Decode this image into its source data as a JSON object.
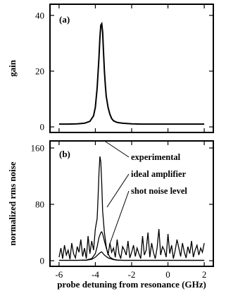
{
  "chart_data": [
    {
      "type": "line",
      "panel_label": "(a)",
      "xlabel": "",
      "ylabel": "gain",
      "xlim": [
        -6.5,
        2.5
      ],
      "ylim": [
        -2,
        44
      ],
      "yticks": [
        0,
        20,
        40
      ],
      "ytick_labels": [
        "0",
        "20",
        "40"
      ],
      "grid": false,
      "series": [
        {
          "x": [
            -6.0,
            -5.5,
            -5.0,
            -4.6,
            -4.3,
            -4.1,
            -4.0,
            -3.9,
            -3.8,
            -3.75,
            -3.7,
            -3.65,
            -3.6,
            -3.55,
            -3.5,
            -3.45,
            -3.4,
            -3.3,
            -3.2,
            -3.1,
            -3.0,
            -2.8,
            -2.5,
            -2.0,
            -1.5,
            -1.0,
            -0.5,
            0.0,
            0.5,
            1.0,
            1.5,
            2.0
          ],
          "y": [
            1.0,
            1.0,
            1.1,
            1.3,
            2.0,
            4.0,
            7.0,
            14.0,
            25.0,
            32.0,
            36.5,
            37.0,
            34.0,
            27.0,
            20.0,
            15.0,
            11.0,
            7.0,
            4.5,
            3.0,
            2.2,
            1.6,
            1.3,
            1.1,
            1.0,
            1.0,
            1.0,
            1.0,
            1.0,
            1.0,
            1.0,
            1.0
          ]
        }
      ]
    },
    {
      "type": "line",
      "panel_label": "(b)",
      "xlabel": "probe detuning from resonance (GHz)",
      "ylabel": "normalized rms noise",
      "xlim": [
        -6.5,
        2.5
      ],
      "ylim": [
        -8,
        170
      ],
      "xticks": [
        -6,
        -4,
        -2,
        0,
        2
      ],
      "xtick_labels": [
        "-6",
        "-4",
        "-2",
        "0",
        "2"
      ],
      "yticks": [
        0,
        80,
        160
      ],
      "ytick_labels": [
        "0",
        "80",
        "160"
      ],
      "grid": false,
      "annotations": [
        "experimental",
        "ideal amplifier",
        "shot noise level"
      ],
      "series": [
        {
          "x": [
            -6.0,
            -5.9,
            -5.8,
            -5.7,
            -5.6,
            -5.5,
            -5.4,
            -5.3,
            -5.2,
            -5.1,
            -5.0,
            -4.9,
            -4.8,
            -4.7,
            -4.6,
            -4.5,
            -4.4,
            -4.3,
            -4.2,
            -4.1,
            -4.0,
            -3.9,
            -3.85,
            -3.8,
            -3.75,
            -3.7,
            -3.65,
            -3.6,
            -3.5,
            -3.4,
            -3.3,
            -3.2,
            -3.1,
            -3.0,
            -2.9,
            -2.8,
            -2.7,
            -2.6,
            -2.5,
            -2.4,
            -2.3,
            -2.2,
            -2.1,
            -2.0,
            -1.9,
            -1.8,
            -1.7,
            -1.6,
            -1.5,
            -1.4,
            -1.3,
            -1.2,
            -1.1,
            -1.0,
            -0.9,
            -0.8,
            -0.7,
            -0.6,
            -0.5,
            -0.4,
            -0.3,
            -0.2,
            -0.1,
            0.0,
            0.1,
            0.2,
            0.3,
            0.4,
            0.5,
            0.6,
            0.7,
            0.8,
            0.9,
            1.0,
            1.1,
            1.2,
            1.3,
            1.4,
            1.5,
            1.6,
            1.7,
            1.8,
            1.9,
            2.0
          ],
          "y": [
            5,
            18,
            3,
            22,
            8,
            15,
            2,
            25,
            10,
            4,
            20,
            12,
            30,
            6,
            18,
            3,
            35,
            10,
            28,
            15,
            45,
            60,
            90,
            125,
            148,
            140,
            110,
            70,
            40,
            20,
            8,
            25,
            12,
            18,
            5,
            30,
            10,
            3,
            20,
            15,
            8,
            28,
            4,
            12,
            22,
            6,
            18,
            10,
            3,
            35,
            8,
            15,
            40,
            5,
            25,
            12,
            3,
            18,
            45,
            8,
            20,
            15,
            5,
            38,
            10,
            22,
            3,
            15,
            30,
            18,
            6,
            25,
            12,
            4,
            20,
            10,
            28,
            5,
            15,
            22,
            8,
            18,
            12,
            25
          ]
        },
        {
          "x": [
            -6.0,
            -5.0,
            -4.5,
            -4.2,
            -4.0,
            -3.9,
            -3.8,
            -3.7,
            -3.65,
            -3.6,
            -3.5,
            -3.4,
            -3.3,
            -3.2,
            -3.0,
            -2.8,
            -2.5,
            -2.0,
            -1.0,
            0.0,
            1.0,
            2.0
          ],
          "y": [
            0.5,
            0.5,
            1.0,
            3.0,
            10.0,
            20.0,
            33.0,
            40.0,
            41.0,
            38.0,
            28.0,
            18.0,
            10.0,
            5.0,
            2.0,
            1.0,
            0.5,
            0.5,
            0.5,
            0.5,
            0.5,
            0.5
          ]
        },
        {
          "x": [
            -6.0,
            -5.0,
            -4.5,
            -4.2,
            -4.0,
            -3.8,
            -3.7,
            -3.65,
            -3.6,
            -3.5,
            -3.3,
            -3.0,
            -2.8,
            -2.5,
            -2.0,
            -1.0,
            0.0,
            1.0,
            2.0
          ],
          "y": [
            0.5,
            0.5,
            0.7,
            2.0,
            5.0,
            10.0,
            12.0,
            12.5,
            11.0,
            8.0,
            4.0,
            1.5,
            0.8,
            0.5,
            0.5,
            0.5,
            0.5,
            0.5,
            0.5
          ]
        }
      ]
    }
  ]
}
